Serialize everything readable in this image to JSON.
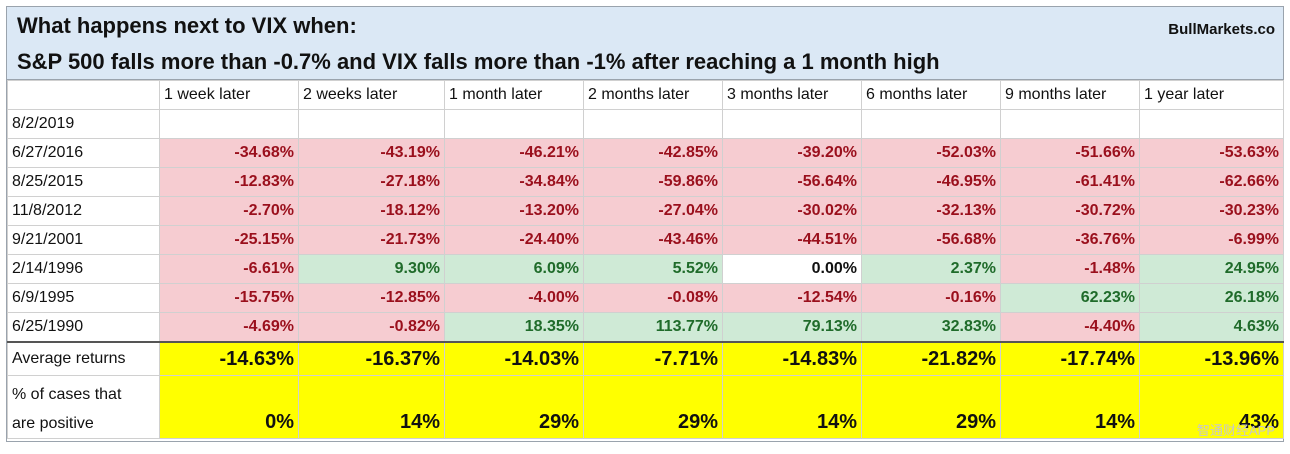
{
  "header": {
    "title_line1": "What happens next to VIX when:",
    "title_line2": "S&P 500 falls more than -0.7% and VIX falls more than -1% after reaching a 1 month high",
    "brand": "BullMarkets.co"
  },
  "columns": [
    "",
    "1 week later",
    "2 weeks later",
    "1 month later",
    "2 months later",
    "3 months later",
    "6 months later",
    "9 months later",
    "1 year later"
  ],
  "rows": [
    {
      "date": "8/2/2019",
      "values": [
        "",
        "",
        "",
        "",
        "",
        "",
        "",
        ""
      ],
      "status": [
        "",
        "",
        "",
        "",
        "",
        "",
        "",
        ""
      ]
    },
    {
      "date": "6/27/2016",
      "values": [
        "-34.68%",
        "-43.19%",
        "-46.21%",
        "-42.85%",
        "-39.20%",
        "-52.03%",
        "-51.66%",
        "-53.63%"
      ],
      "status": [
        "neg",
        "neg",
        "neg",
        "neg",
        "neg",
        "neg",
        "neg",
        "neg"
      ]
    },
    {
      "date": "8/25/2015",
      "values": [
        "-12.83%",
        "-27.18%",
        "-34.84%",
        "-59.86%",
        "-56.64%",
        "-46.95%",
        "-61.41%",
        "-62.66%"
      ],
      "status": [
        "neg",
        "neg",
        "neg",
        "neg",
        "neg",
        "neg",
        "neg",
        "neg"
      ]
    },
    {
      "date": "11/8/2012",
      "values": [
        "-2.70%",
        "-18.12%",
        "-13.20%",
        "-27.04%",
        "-30.02%",
        "-32.13%",
        "-30.72%",
        "-30.23%"
      ],
      "status": [
        "neg",
        "neg",
        "neg",
        "neg",
        "neg",
        "neg",
        "neg",
        "neg"
      ]
    },
    {
      "date": "9/21/2001",
      "values": [
        "-25.15%",
        "-21.73%",
        "-24.40%",
        "-43.46%",
        "-44.51%",
        "-56.68%",
        "-36.76%",
        "-6.99%"
      ],
      "status": [
        "neg",
        "neg",
        "neg",
        "neg",
        "neg",
        "neg",
        "neg",
        "neg"
      ]
    },
    {
      "date": "2/14/1996",
      "values": [
        "-6.61%",
        "9.30%",
        "6.09%",
        "5.52%",
        "0.00%",
        "2.37%",
        "-1.48%",
        "24.95%"
      ],
      "status": [
        "neg",
        "pos",
        "pos",
        "pos",
        "zero",
        "pos",
        "neg",
        "pos"
      ]
    },
    {
      "date": "6/9/1995",
      "values": [
        "-15.75%",
        "-12.85%",
        "-4.00%",
        "-0.08%",
        "-12.54%",
        "-0.16%",
        "62.23%",
        "26.18%"
      ],
      "status": [
        "neg",
        "neg",
        "neg",
        "neg",
        "neg",
        "neg",
        "pos",
        "pos"
      ]
    },
    {
      "date": "6/25/1990",
      "values": [
        "-4.69%",
        "-0.82%",
        "18.35%",
        "113.77%",
        "79.13%",
        "32.83%",
        "-4.40%",
        "4.63%"
      ],
      "status": [
        "neg",
        "neg",
        "pos",
        "pos",
        "pos",
        "pos",
        "neg",
        "pos"
      ]
    }
  ],
  "summary": {
    "avg_label": "Average returns",
    "avg_values": [
      "-14.63%",
      "-16.37%",
      "-14.03%",
      "-7.71%",
      "-14.83%",
      "-21.82%",
      "-17.74%",
      "-13.96%"
    ],
    "pct_label_line1": "% of cases that",
    "pct_label_line2": "are positive",
    "pct_values": [
      "0%",
      "14%",
      "29%",
      "29%",
      "14%",
      "29%",
      "14%",
      "43%"
    ]
  },
  "watermark": "智通财经APP",
  "colors": {
    "header_bg": "#dbe8f5",
    "negative_bg": "#f6ccd1",
    "negative_text": "#9a0f1c",
    "positive_bg": "#cfead6",
    "positive_text": "#1f6b2a",
    "summary_bg": "#ffff00"
  }
}
